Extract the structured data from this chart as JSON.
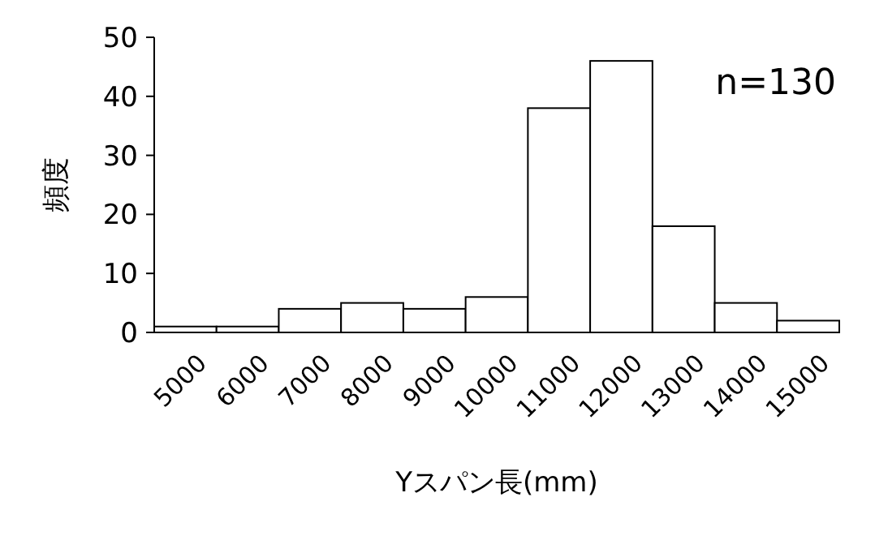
{
  "chart_data": {
    "type": "bar",
    "xlabel": "Yスパン長(mm)",
    "ylabel": "頻度",
    "categories": [
      "5000",
      "6000",
      "7000",
      "8000",
      "9000",
      "10000",
      "11000",
      "12000",
      "13000",
      "14000",
      "15000"
    ],
    "values": [
      1,
      1,
      4,
      5,
      4,
      6,
      38,
      46,
      18,
      5,
      2
    ],
    "color": "#ffffff",
    "ylim": [
      0,
      50
    ],
    "yticks": [
      0,
      10,
      20,
      30,
      40,
      50
    ],
    "annotations": [
      "n=130"
    ]
  }
}
